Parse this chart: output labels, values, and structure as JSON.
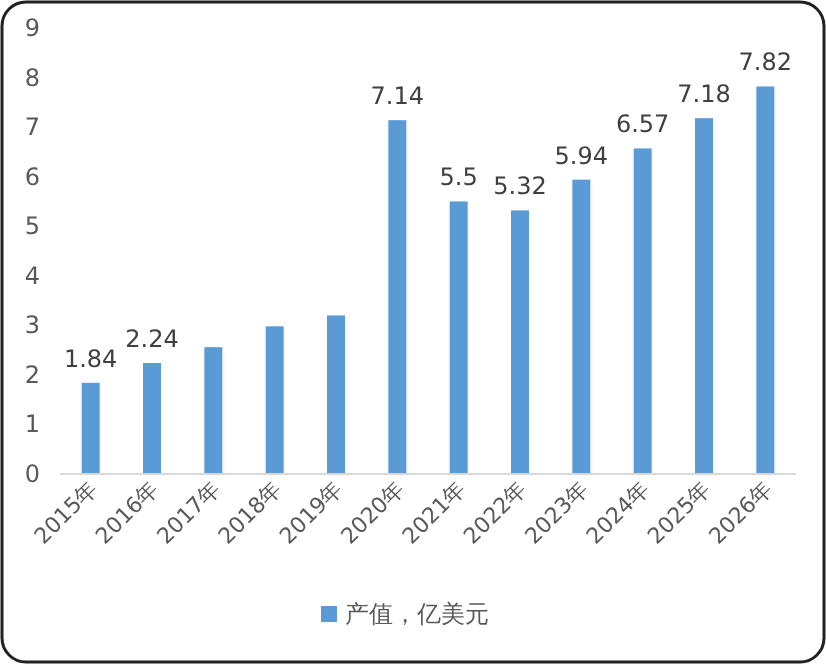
{
  "chart_data": {
    "type": "bar",
    "categories": [
      "2015年",
      "2016年",
      "2017年",
      "2018年",
      "2019年",
      "2020年",
      "2021年",
      "2022年",
      "2023年",
      "2024年",
      "2025年",
      "2026年"
    ],
    "series": [
      {
        "name": "产值，亿美元",
        "color": "#5b9bd5",
        "values": [
          1.84,
          2.24,
          2.56,
          2.98,
          3.2,
          7.14,
          5.5,
          5.32,
          5.94,
          6.57,
          7.18,
          7.82
        ],
        "value_labels": [
          "1.84",
          "2.24",
          null,
          null,
          null,
          "7.14",
          "5.5",
          "5.32",
          "5.94",
          "6.57",
          "7.18",
          "7.82"
        ]
      }
    ],
    "ylim": [
      0,
      9
    ],
    "yticks": [
      0,
      1,
      2,
      3,
      4,
      5,
      6,
      7,
      8,
      9
    ],
    "grid": false,
    "legend": "bottom"
  }
}
